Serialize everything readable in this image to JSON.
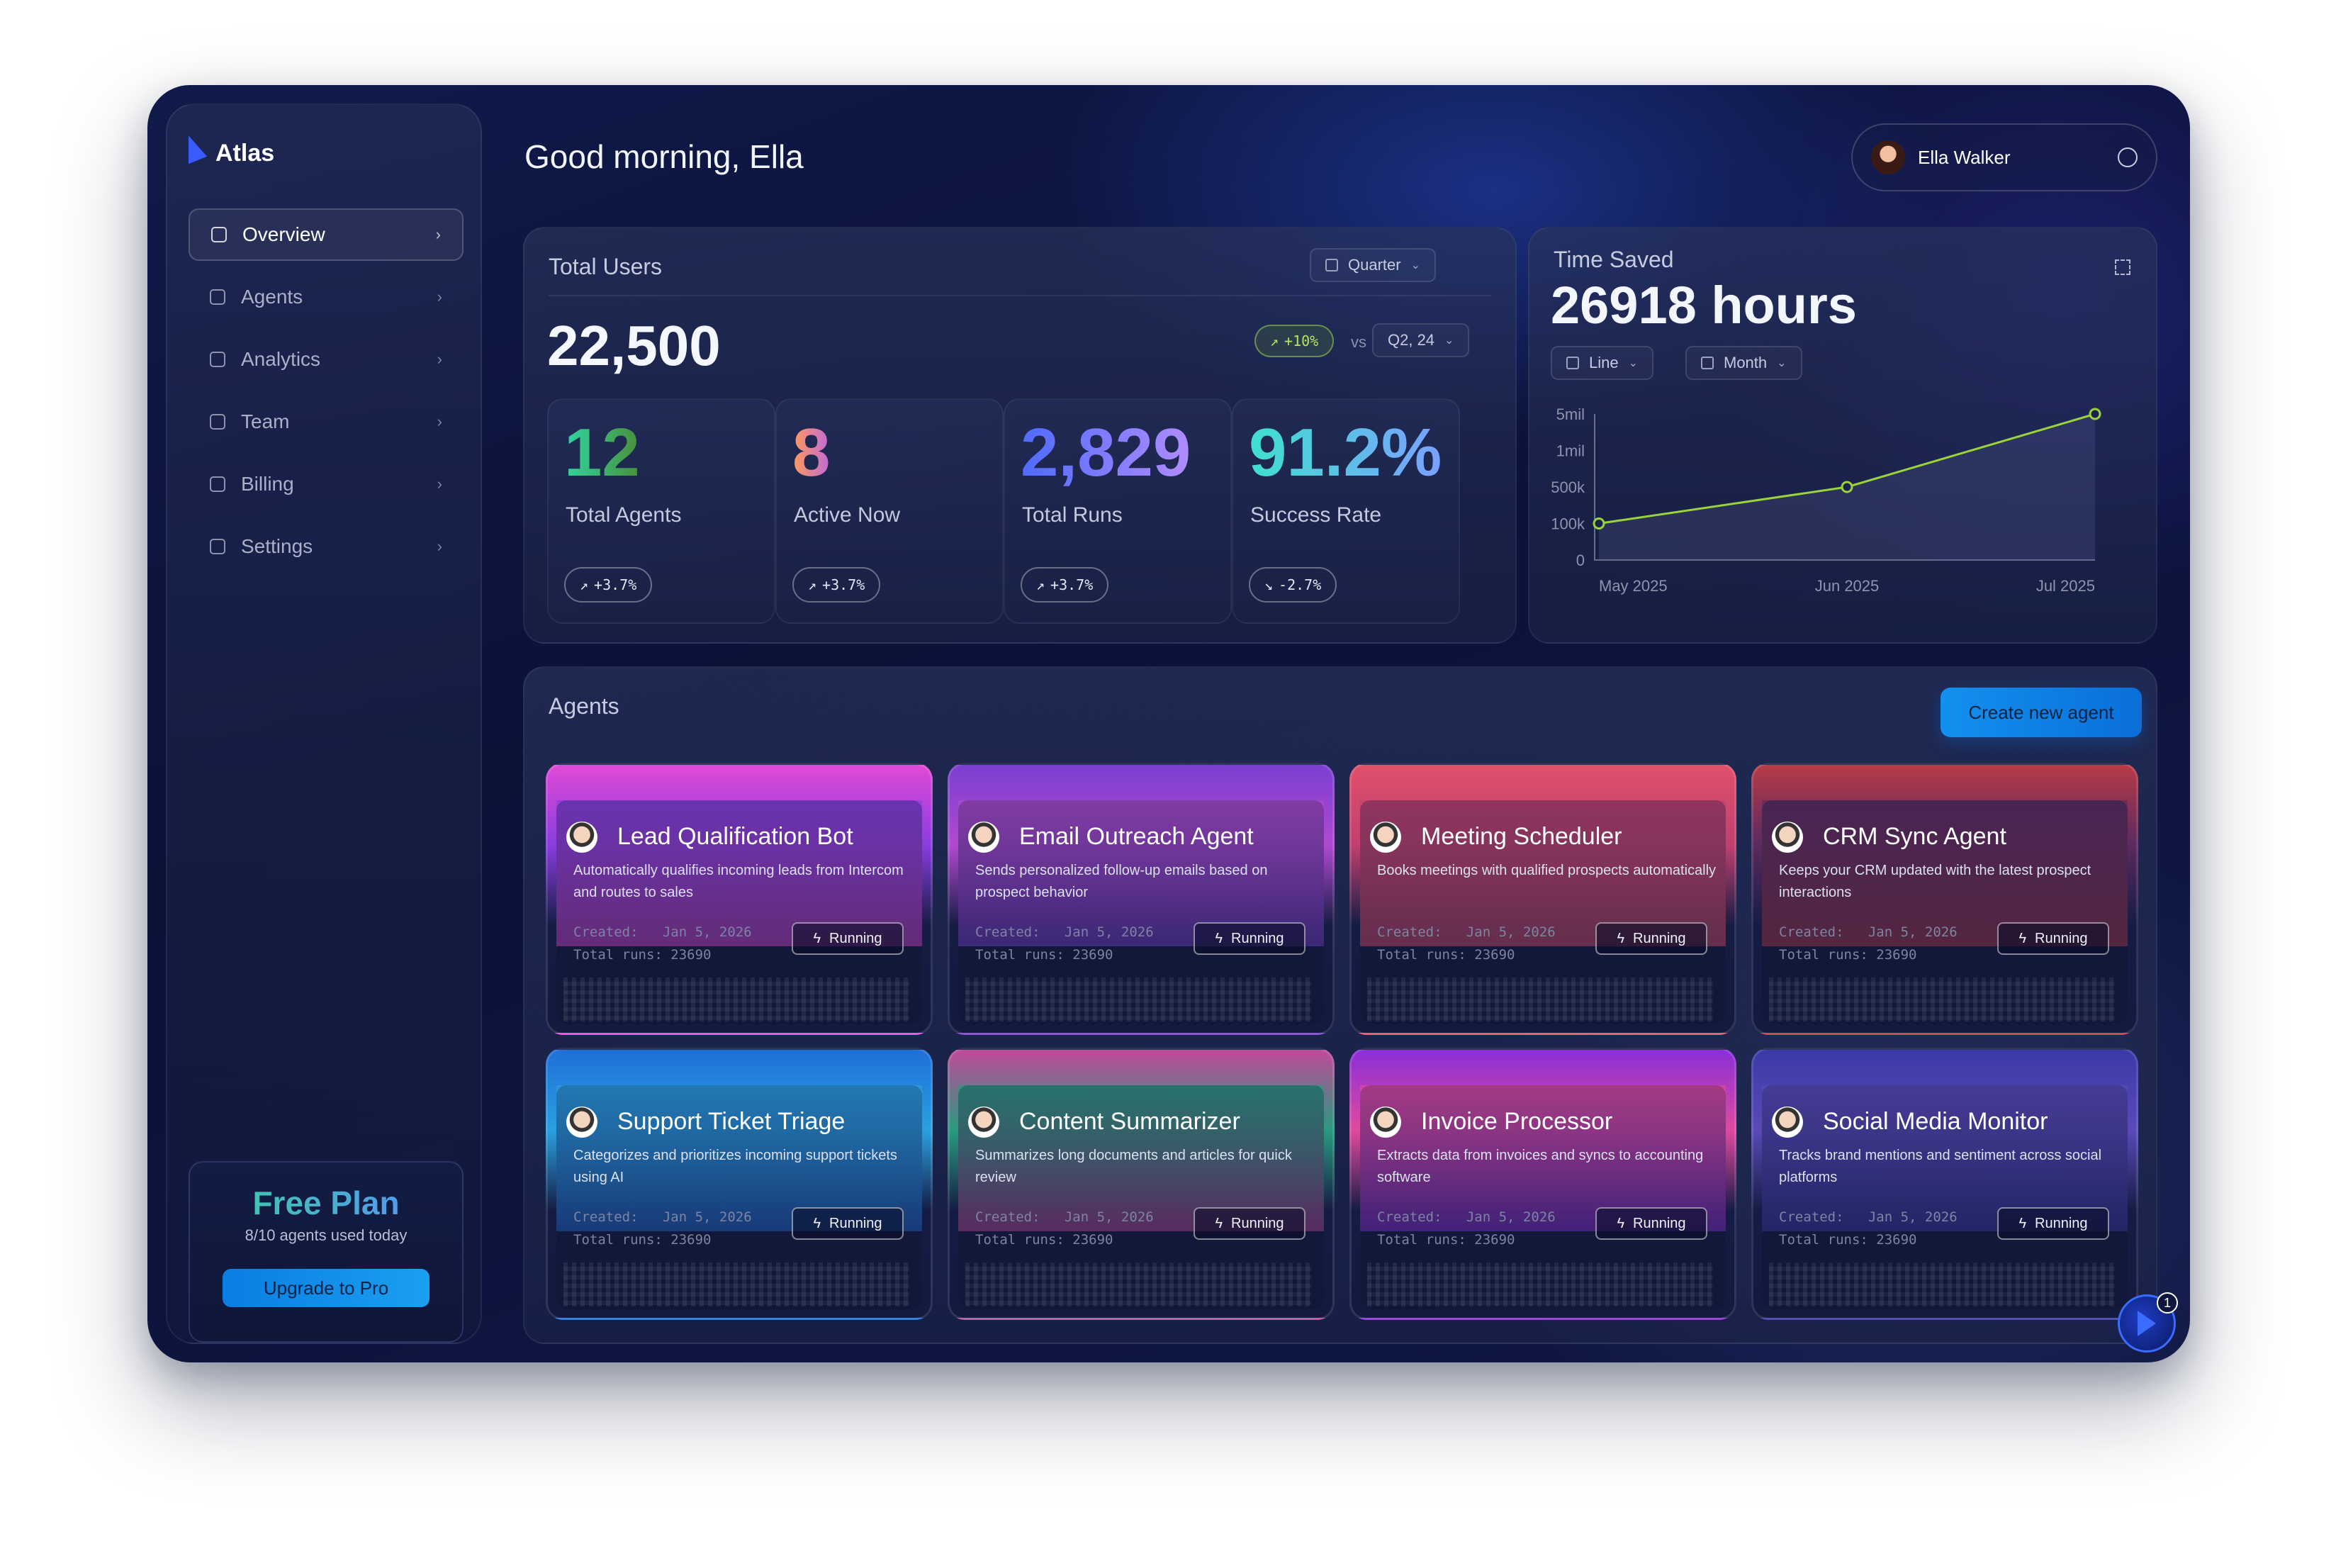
{
  "app": {
    "name": "Atlas",
    "greeting": "Good morning, Ella"
  },
  "sidebar": {
    "items": [
      {
        "label": "Overview",
        "icon": "grid-icon",
        "active": true
      },
      {
        "label": "Agents",
        "icon": "bot-icon"
      },
      {
        "label": "Analytics",
        "icon": "chart-icon"
      },
      {
        "label": "Team",
        "icon": "team-icon"
      },
      {
        "label": "Billing",
        "icon": "wallet-icon"
      },
      {
        "label": "Settings",
        "icon": "gear-icon"
      }
    ],
    "plan": {
      "title": "Free Plan",
      "usage": "8/10 agents used today",
      "button": "Upgrade to Pro"
    }
  },
  "profile": {
    "name": "Ella Walker"
  },
  "users": {
    "title": "Total Users",
    "period": "Quarter",
    "value": "22,500",
    "change": "+10%",
    "vs": "vs",
    "compare": "Q2, 24",
    "stats": [
      {
        "value": "12",
        "label": "Total Agents",
        "change": "+3.7%",
        "trend": "up",
        "gradient": [
          "#2fd6a0",
          "#4a8f3a"
        ]
      },
      {
        "value": "8",
        "label": "Active Now",
        "change": "+3.7%",
        "trend": "up",
        "gradient": [
          "#ff9a5a",
          "#c06ad8"
        ]
      },
      {
        "value": "2,829",
        "label": "Total Runs",
        "change": "+3.7%",
        "trend": "up",
        "gradient": [
          "#4f6bff",
          "#b08cff"
        ]
      },
      {
        "value": "91.2%",
        "label": "Success Rate",
        "change": "-2.7%",
        "trend": "down",
        "gradient": [
          "#3fe0d0",
          "#7aa0ff"
        ]
      }
    ]
  },
  "time_saved": {
    "title": "Time Saved",
    "value": "26918 hours",
    "chart_type_label": "Line",
    "period_label": "Month"
  },
  "chart_data": {
    "type": "line",
    "x": [
      "May 2025",
      "Jun 2025",
      "Jul 2025"
    ],
    "y_ticks": [
      "5mil",
      "1mil",
      "500k",
      "100k",
      "0"
    ],
    "y_tick_values": [
      5000000,
      1000000,
      500000,
      100000,
      0
    ],
    "series": [
      {
        "values": [
          100000,
          500000,
          5000000
        ]
      }
    ],
    "line_color": "#9bd33a"
  },
  "agents": {
    "title": "Agents",
    "create_label": "Create new agent",
    "created_label": "Created:",
    "runs_label": "Total runs:",
    "items": [
      {
        "name": "Lead Qualification Bot",
        "desc": "Automatically qualifies incoming leads from Intercom and routes to sales",
        "created": "Jan 5, 2026",
        "runs": "23690",
        "status": "Running",
        "colors": [
          "#e04ad6",
          "#8a3de0"
        ]
      },
      {
        "name": "Email Outreach Agent",
        "desc": "Sends personalized follow-up emails based on prospect behavior",
        "created": "Jan 5, 2026",
        "runs": "23690",
        "status": "Running",
        "colors": [
          "#7a3fd0",
          "#b04ad0"
        ]
      },
      {
        "name": "Meeting Scheduler",
        "desc": "Books meetings with qualified prospects automatically",
        "created": "Jan 5, 2026",
        "runs": "23690",
        "status": "Running",
        "colors": [
          "#e0506a",
          "#c04070"
        ]
      },
      {
        "name": "CRM Sync Agent",
        "desc": "Keeps your CRM updated with the latest prospect interactions",
        "created": "Jan 5, 2026",
        "runs": "23690",
        "status": "Running",
        "colors": [
          "#b83a48",
          "#5a2a60"
        ]
      },
      {
        "name": "Support Ticket Triage",
        "desc": "Categorizes and prioritizes incoming support tickets using AI",
        "created": "Jan 5, 2026",
        "runs": "23690",
        "status": "Running",
        "colors": [
          "#1f6fd8",
          "#2aa0e0"
        ]
      },
      {
        "name": "Content Summarizer",
        "desc": "Summarizes long documents and articles for quick review",
        "created": "Jan 5, 2026",
        "runs": "23690",
        "status": "Running",
        "colors": [
          "#c04a9a",
          "#2a9a80"
        ]
      },
      {
        "name": "Invoice Processor",
        "desc": "Extracts data from invoices and syncs to accounting software",
        "created": "Jan 5, 2026",
        "runs": "23690",
        "status": "Running",
        "colors": [
          "#8a2fd8",
          "#e04aa0"
        ]
      },
      {
        "name": "Social Media Monitor",
        "desc": "Tracks brand mentions and sentiment across social platforms",
        "created": "Jan 5, 2026",
        "runs": "23690",
        "status": "Running",
        "colors": [
          "#3a3aa8",
          "#5a4ab8"
        ]
      }
    ]
  },
  "fab": {
    "count": "1"
  }
}
